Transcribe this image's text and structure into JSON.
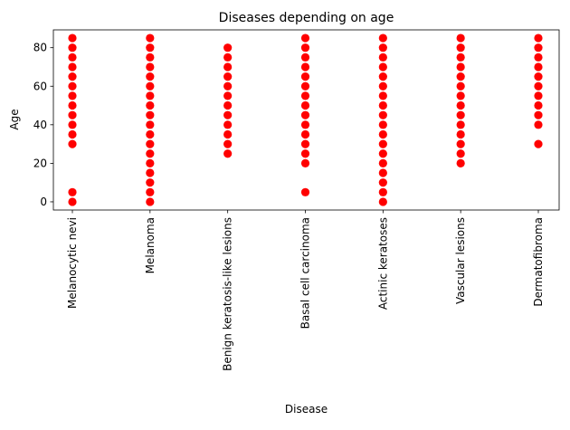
{
  "chart_data": {
    "type": "scatter",
    "title": "Diseases depending on age",
    "xlabel": "Disease",
    "ylabel": "Age",
    "categories": [
      "Melanocytic nevi",
      "Melanoma",
      "Benign keratosis-like lesions",
      "Basal cell carcinoma",
      "Actinic keratoses",
      "Vascular lesions",
      "Dermatofibroma"
    ],
    "ylim": [
      -4.25,
      89.25
    ],
    "yticks": [
      0,
      20,
      40,
      60,
      80
    ],
    "grid": false,
    "marker_color": "#ff0000",
    "series": [
      {
        "category": "Melanocytic nevi",
        "ages": [
          0,
          5,
          30,
          35,
          40,
          45,
          50,
          55,
          60,
          65,
          70,
          75,
          80,
          85
        ]
      },
      {
        "category": "Melanoma",
        "ages": [
          0,
          5,
          10,
          15,
          20,
          25,
          30,
          35,
          40,
          45,
          50,
          55,
          60,
          65,
          70,
          75,
          80,
          85
        ]
      },
      {
        "category": "Benign keratosis-like lesions",
        "ages": [
          25,
          30,
          35,
          40,
          45,
          50,
          55,
          60,
          65,
          70,
          75,
          80
        ]
      },
      {
        "category": "Basal cell carcinoma",
        "ages": [
          5,
          20,
          25,
          30,
          35,
          40,
          45,
          50,
          55,
          60,
          65,
          70,
          75,
          80,
          85
        ]
      },
      {
        "category": "Actinic keratoses",
        "ages": [
          0,
          5,
          10,
          15,
          20,
          25,
          30,
          35,
          40,
          45,
          50,
          55,
          60,
          65,
          70,
          75,
          80,
          85
        ]
      },
      {
        "category": "Vascular lesions",
        "ages": [
          20,
          25,
          30,
          35,
          40,
          45,
          50,
          55,
          60,
          65,
          70,
          75,
          80,
          85
        ]
      },
      {
        "category": "Dermatofibroma",
        "ages": [
          30,
          40,
          45,
          50,
          55,
          60,
          65,
          70,
          75,
          80,
          85
        ]
      }
    ]
  }
}
